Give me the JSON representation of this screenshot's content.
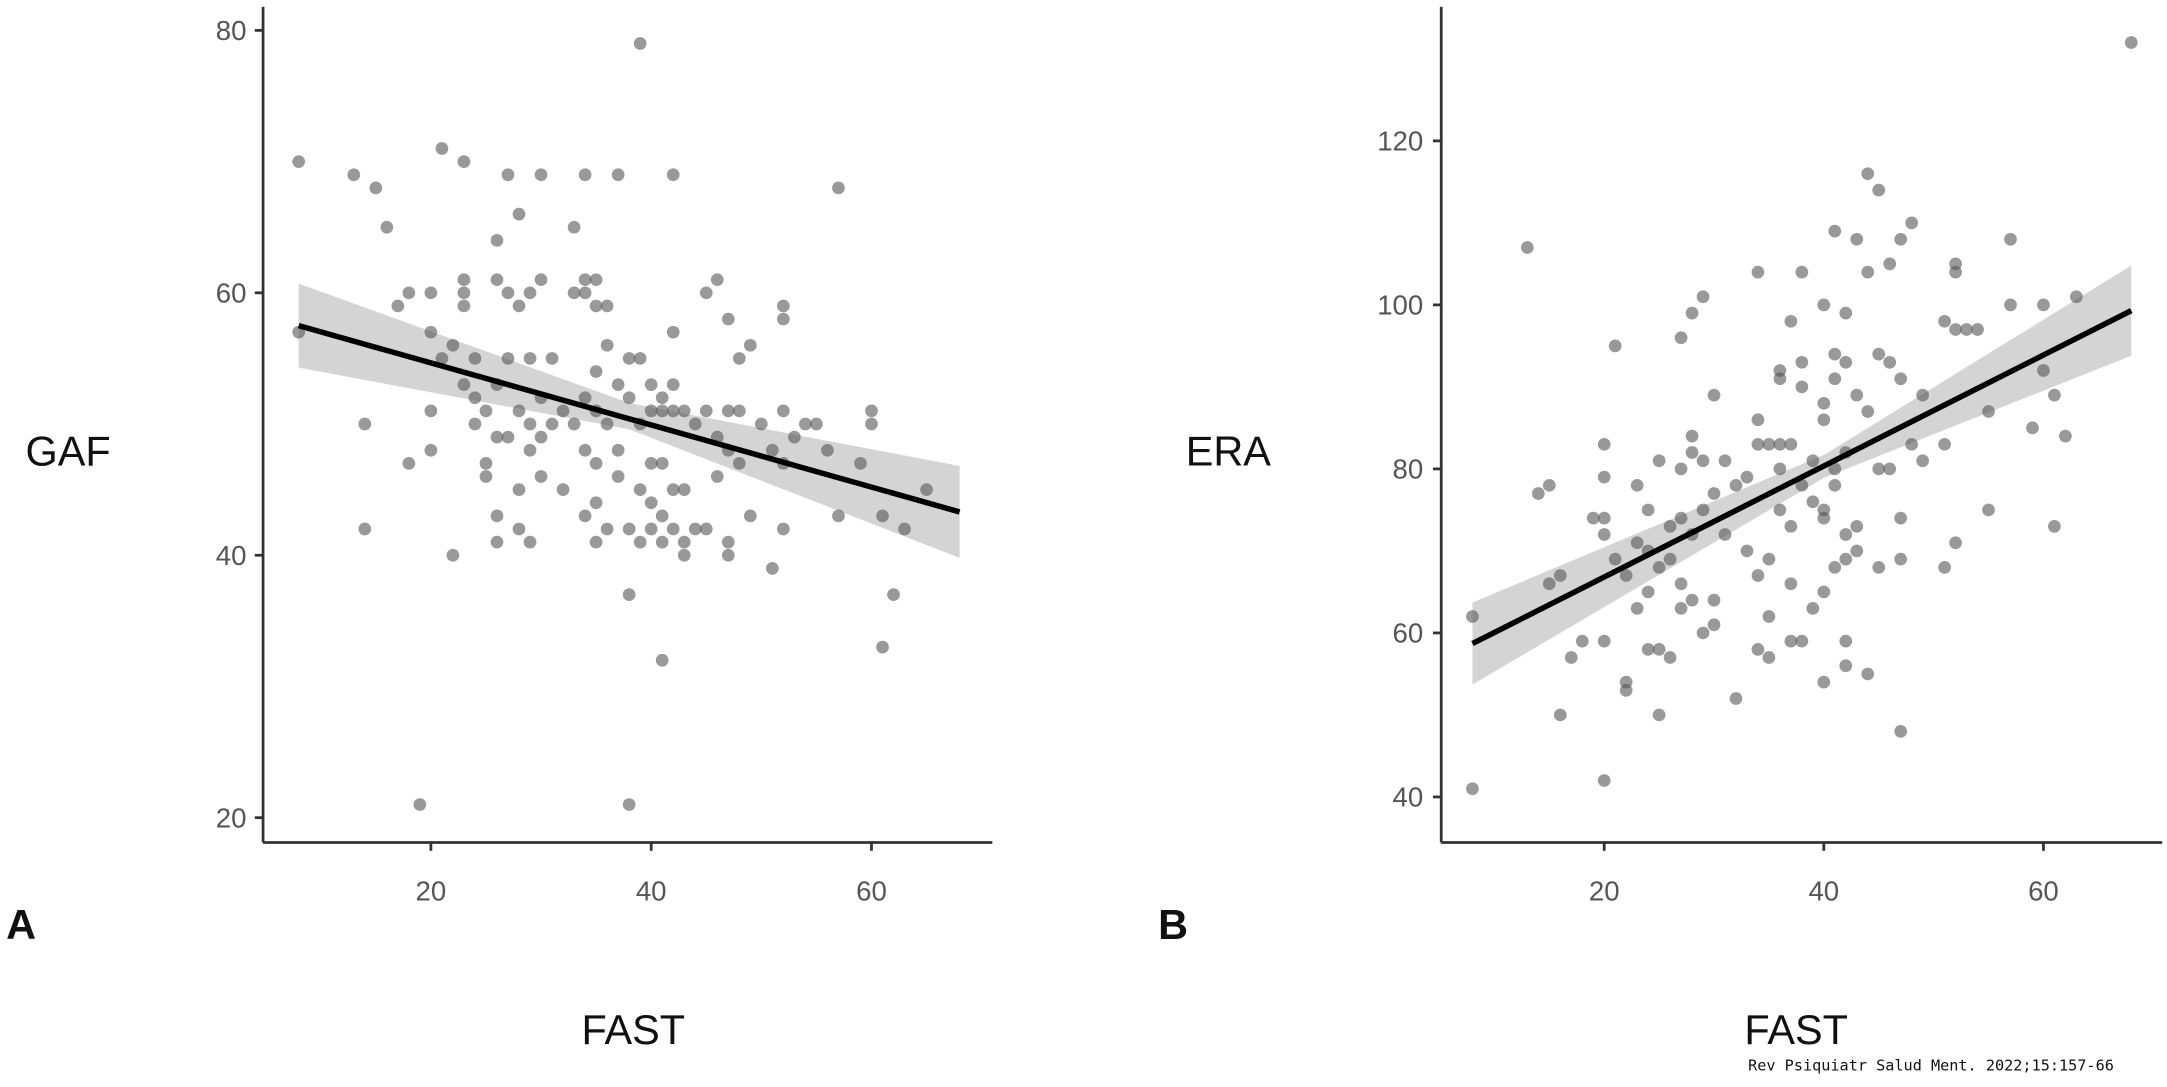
{
  "citation": "Rev Psiquiatr Salud Ment. 2022;15:157-66",
  "chart_data": [
    {
      "type": "scatter",
      "panel_label": "A",
      "xlabel": "FAST",
      "ylabel": "GAF",
      "xlim": [
        5,
        72
      ],
      "ylim": [
        18,
        82
      ],
      "xticks": [
        20,
        40,
        60
      ],
      "yticks": [
        20,
        40,
        60,
        80
      ],
      "grid": false,
      "point_color": "#555555",
      "regression": {
        "x": [
          8,
          68
        ],
        "y": [
          57.5,
          43.3
        ],
        "color": "#000000"
      },
      "confidence_band": {
        "x": [
          8,
          38,
          68
        ],
        "lower": [
          54.3,
          49.6,
          39.8
        ],
        "upper": [
          60.7,
          51.6,
          46.8
        ],
        "color": "#cccccc"
      },
      "points": [
        [
          8,
          70
        ],
        [
          8,
          57
        ],
        [
          13,
          69
        ],
        [
          14,
          50
        ],
        [
          14,
          42
        ],
        [
          15,
          68
        ],
        [
          16,
          65
        ],
        [
          17,
          59
        ],
        [
          18,
          60
        ],
        [
          18,
          47
        ],
        [
          19,
          21
        ],
        [
          20,
          60
        ],
        [
          20,
          57
        ],
        [
          20,
          51
        ],
        [
          20,
          48
        ],
        [
          21,
          71
        ],
        [
          21,
          55
        ],
        [
          22,
          56
        ],
        [
          22,
          40
        ],
        [
          23,
          70
        ],
        [
          23,
          61
        ],
        [
          23,
          60
        ],
        [
          23,
          59
        ],
        [
          23,
          53
        ],
        [
          24,
          55
        ],
        [
          24,
          52
        ],
        [
          24,
          50
        ],
        [
          25,
          51
        ],
        [
          25,
          47
        ],
        [
          25,
          46
        ],
        [
          26,
          64
        ],
        [
          26,
          61
        ],
        [
          26,
          53
        ],
        [
          26,
          49
        ],
        [
          26,
          43
        ],
        [
          26,
          41
        ],
        [
          27,
          69
        ],
        [
          27,
          60
        ],
        [
          27,
          55
        ],
        [
          27,
          49
        ],
        [
          28,
          66
        ],
        [
          28,
          59
        ],
        [
          28,
          51
        ],
        [
          28,
          45
        ],
        [
          28,
          42
        ],
        [
          29,
          60
        ],
        [
          29,
          55
        ],
        [
          29,
          50
        ],
        [
          29,
          48
        ],
        [
          29,
          41
        ],
        [
          30,
          69
        ],
        [
          30,
          61
        ],
        [
          30,
          52
        ],
        [
          30,
          49
        ],
        [
          30,
          46
        ],
        [
          31,
          55
        ],
        [
          31,
          50
        ],
        [
          32,
          45
        ],
        [
          32,
          51
        ],
        [
          33,
          65
        ],
        [
          33,
          60
        ],
        [
          33,
          50
        ],
        [
          34,
          69
        ],
        [
          34,
          61
        ],
        [
          34,
          60
        ],
        [
          34,
          52
        ],
        [
          34,
          48
        ],
        [
          34,
          43
        ],
        [
          35,
          61
        ],
        [
          35,
          59
        ],
        [
          35,
          54
        ],
        [
          35,
          51
        ],
        [
          35,
          47
        ],
        [
          35,
          44
        ],
        [
          35,
          41
        ],
        [
          36,
          59
        ],
        [
          36,
          56
        ],
        [
          36,
          50
        ],
        [
          36,
          42
        ],
        [
          37,
          69
        ],
        [
          37,
          53
        ],
        [
          37,
          48
        ],
        [
          37,
          46
        ],
        [
          38,
          55
        ],
        [
          38,
          52
        ],
        [
          38,
          42
        ],
        [
          38,
          37
        ],
        [
          38,
          21
        ],
        [
          39,
          79
        ],
        [
          39,
          55
        ],
        [
          39,
          50
        ],
        [
          39,
          45
        ],
        [
          39,
          41
        ],
        [
          40,
          53
        ],
        [
          40,
          51
        ],
        [
          40,
          47
        ],
        [
          40,
          44
        ],
        [
          40,
          42
        ],
        [
          41,
          52
        ],
        [
          41,
          51
        ],
        [
          41,
          47
        ],
        [
          41,
          43
        ],
        [
          41,
          41
        ],
        [
          41,
          32
        ],
        [
          42,
          69
        ],
        [
          42,
          57
        ],
        [
          42,
          53
        ],
        [
          42,
          51
        ],
        [
          42,
          45
        ],
        [
          42,
          42
        ],
        [
          43,
          51
        ],
        [
          43,
          45
        ],
        [
          43,
          41
        ],
        [
          43,
          40
        ],
        [
          44,
          50
        ],
        [
          44,
          42
        ],
        [
          45,
          60
        ],
        [
          45,
          51
        ],
        [
          45,
          42
        ],
        [
          46,
          61
        ],
        [
          46,
          49
        ],
        [
          46,
          46
        ],
        [
          47,
          58
        ],
        [
          47,
          51
        ],
        [
          47,
          48
        ],
        [
          47,
          41
        ],
        [
          47,
          40
        ],
        [
          48,
          55
        ],
        [
          48,
          51
        ],
        [
          48,
          47
        ],
        [
          49,
          56
        ],
        [
          49,
          43
        ],
        [
          50,
          50
        ],
        [
          51,
          48
        ],
        [
          51,
          39
        ],
        [
          52,
          59
        ],
        [
          52,
          58
        ],
        [
          52,
          51
        ],
        [
          52,
          47
        ],
        [
          52,
          42
        ],
        [
          53,
          49
        ],
        [
          54,
          50
        ],
        [
          55,
          50
        ],
        [
          56,
          48
        ],
        [
          57,
          68
        ],
        [
          57,
          43
        ],
        [
          59,
          47
        ],
        [
          60,
          51
        ],
        [
          60,
          50
        ],
        [
          61,
          43
        ],
        [
          61,
          33
        ],
        [
          62,
          37
        ],
        [
          63,
          42
        ],
        [
          65,
          45
        ]
      ]
    },
    {
      "type": "scatter",
      "panel_label": "B",
      "xlabel": "FAST",
      "ylabel": "ERA",
      "xlim": [
        5,
        70
      ],
      "ylim": [
        34,
        137
      ],
      "xticks": [
        20,
        40,
        60
      ],
      "yticks": [
        40,
        60,
        80,
        100,
        120
      ],
      "grid": false,
      "point_color": "#555555",
      "regression": {
        "x": [
          8,
          68
        ],
        "y": [
          58.7,
          99.3
        ],
        "color": "#000000"
      },
      "confidence_band": {
        "x": [
          8,
          40,
          68
        ],
        "lower": [
          53.7,
          78.9,
          93.8
        ],
        "upper": [
          63.7,
          81.7,
          104.8
        ],
        "color": "#cccccc"
      },
      "points": [
        [
          8,
          62
        ],
        [
          8,
          41
        ],
        [
          13,
          107
        ],
        [
          14,
          77
        ],
        [
          15,
          78
        ],
        [
          15,
          66
        ],
        [
          16,
          50
        ],
        [
          16,
          67
        ],
        [
          17,
          57
        ],
        [
          18,
          59
        ],
        [
          19,
          74
        ],
        [
          20,
          83
        ],
        [
          20,
          79
        ],
        [
          20,
          74
        ],
        [
          20,
          72
        ],
        [
          20,
          59
        ],
        [
          20,
          42
        ],
        [
          21,
          95
        ],
        [
          21,
          69
        ],
        [
          22,
          54
        ],
        [
          22,
          53
        ],
        [
          22,
          67
        ],
        [
          23,
          78
        ],
        [
          23,
          71
        ],
        [
          23,
          63
        ],
        [
          24,
          75
        ],
        [
          24,
          70
        ],
        [
          24,
          65
        ],
        [
          24,
          58
        ],
        [
          25,
          81
        ],
        [
          25,
          68
        ],
        [
          25,
          58
        ],
        [
          25,
          50
        ],
        [
          26,
          73
        ],
        [
          26,
          69
        ],
        [
          26,
          57
        ],
        [
          27,
          96
        ],
        [
          27,
          80
        ],
        [
          27,
          74
        ],
        [
          27,
          66
        ],
        [
          27,
          63
        ],
        [
          28,
          99
        ],
        [
          28,
          84
        ],
        [
          28,
          82
        ],
        [
          28,
          72
        ],
        [
          28,
          64
        ],
        [
          29,
          101
        ],
        [
          29,
          81
        ],
        [
          29,
          75
        ],
        [
          29,
          60
        ],
        [
          30,
          89
        ],
        [
          30,
          77
        ],
        [
          30,
          64
        ],
        [
          30,
          61
        ],
        [
          31,
          81
        ],
        [
          31,
          72
        ],
        [
          32,
          78
        ],
        [
          32,
          52
        ],
        [
          33,
          79
        ],
        [
          33,
          70
        ],
        [
          34,
          104
        ],
        [
          34,
          86
        ],
        [
          34,
          83
        ],
        [
          34,
          67
        ],
        [
          34,
          58
        ],
        [
          35,
          83
        ],
        [
          35,
          69
        ],
        [
          35,
          62
        ],
        [
          35,
          57
        ],
        [
          36,
          92
        ],
        [
          36,
          91
        ],
        [
          36,
          83
        ],
        [
          36,
          80
        ],
        [
          36,
          75
        ],
        [
          37,
          98
        ],
        [
          37,
          83
        ],
        [
          37,
          73
        ],
        [
          37,
          66
        ],
        [
          37,
          59
        ],
        [
          38,
          104
        ],
        [
          38,
          93
        ],
        [
          38,
          90
        ],
        [
          38,
          78
        ],
        [
          38,
          59
        ],
        [
          39,
          81
        ],
        [
          39,
          76
        ],
        [
          39,
          63
        ],
        [
          40,
          100
        ],
        [
          40,
          88
        ],
        [
          40,
          86
        ],
        [
          40,
          75
        ],
        [
          40,
          74
        ],
        [
          40,
          65
        ],
        [
          40,
          54
        ],
        [
          41,
          109
        ],
        [
          41,
          94
        ],
        [
          41,
          91
        ],
        [
          41,
          80
        ],
        [
          41,
          68
        ],
        [
          41,
          78
        ],
        [
          42,
          99
        ],
        [
          42,
          93
        ],
        [
          42,
          82
        ],
        [
          42,
          72
        ],
        [
          42,
          69
        ],
        [
          42,
          59
        ],
        [
          42,
          56
        ],
        [
          43,
          108
        ],
        [
          43,
          89
        ],
        [
          43,
          73
        ],
        [
          43,
          70
        ],
        [
          44,
          116
        ],
        [
          44,
          104
        ],
        [
          44,
          87
        ],
        [
          44,
          55
        ],
        [
          45,
          114
        ],
        [
          45,
          94
        ],
        [
          45,
          80
        ],
        [
          45,
          68
        ],
        [
          46,
          105
        ],
        [
          46,
          93
        ],
        [
          46,
          80
        ],
        [
          47,
          108
        ],
        [
          47,
          91
        ],
        [
          47,
          74
        ],
        [
          47,
          69
        ],
        [
          47,
          48
        ],
        [
          48,
          110
        ],
        [
          48,
          83
        ],
        [
          49,
          89
        ],
        [
          49,
          81
        ],
        [
          51,
          98
        ],
        [
          51,
          83
        ],
        [
          51,
          68
        ],
        [
          52,
          105
        ],
        [
          52,
          104
        ],
        [
          52,
          97
        ],
        [
          52,
          71
        ],
        [
          53,
          97
        ],
        [
          54,
          97
        ],
        [
          55,
          87
        ],
        [
          55,
          75
        ],
        [
          57,
          108
        ],
        [
          57,
          100
        ],
        [
          59,
          85
        ],
        [
          60,
          100
        ],
        [
          60,
          92
        ],
        [
          61,
          89
        ],
        [
          61,
          73
        ],
        [
          62,
          84
        ],
        [
          63,
          101
        ],
        [
          68,
          132
        ]
      ]
    }
  ]
}
